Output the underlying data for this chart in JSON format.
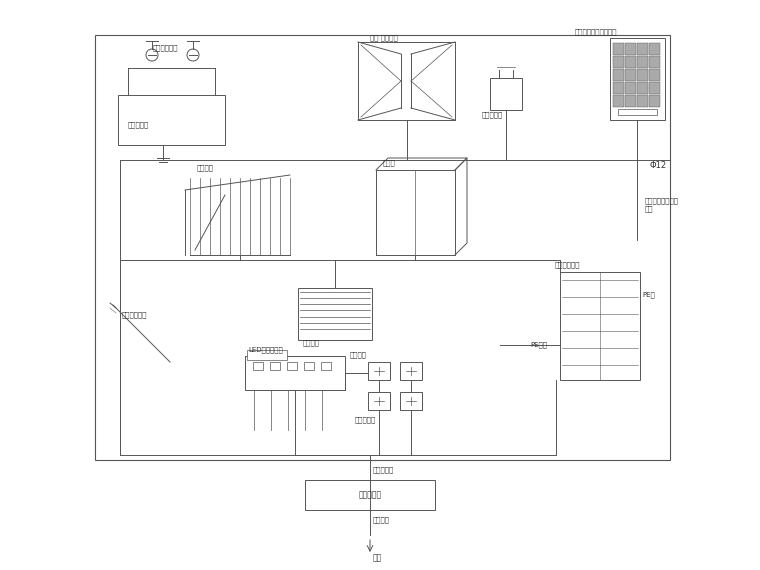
{
  "line_color": "#555555",
  "text_color": "#333333",
  "labels": {
    "cold_water_pipe": "金属给水管道",
    "cold_water_tank": "冷冻调制罐",
    "door": "门窗 入户空间",
    "ac_condenser": "空调冷冻机",
    "ac_unit_label": "空调展机、改造概评号",
    "metal_railing": "金属栏杆",
    "metal_cabinet": "金属柜",
    "metal_duct_label": "金属风道管二",
    "metal_duct": "金属风道",
    "led_light": "LED平板浏览灯",
    "metal_pipe_clamp": "金属管卡",
    "pipe_clamp_label": "管道弹夹具",
    "distribution_box": "强制平配电盒",
    "pe_wire": "PE线",
    "pe_busbar": "PE母线",
    "main_bond_wire": "主联接母线",
    "terminal_board": "接线端子板",
    "ground_busbar": "接地总线",
    "ground": "接地",
    "phi12": "Φ12",
    "weld_label": "与天面防雷接地网\n焊接"
  }
}
